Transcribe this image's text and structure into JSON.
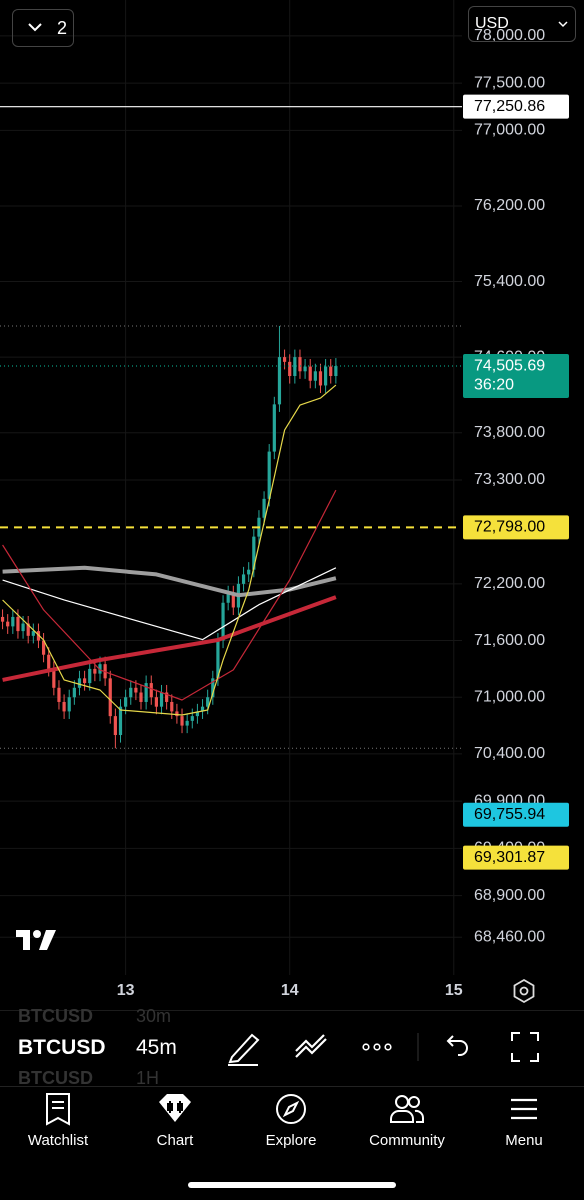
{
  "header": {
    "interval_button": "2",
    "currency": "USD"
  },
  "chart_data": {
    "type": "candlestick",
    "xlim": [
      -0.5,
      89.6
    ],
    "xticks": [
      {
        "value": 24,
        "label": "13"
      },
      {
        "value": 56,
        "label": "14"
      },
      {
        "value": 88,
        "label": "15"
      }
    ],
    "ylim": [
      68060,
      78380
    ],
    "yticks": [
      {
        "value": 78000,
        "label": "78,000.00"
      },
      {
        "value": 77500,
        "label": "77,500.00"
      },
      {
        "value": 77000,
        "label": "77,000.00"
      },
      {
        "value": 76200,
        "label": "76,200.00"
      },
      {
        "value": 75400,
        "label": "75,400.00"
      },
      {
        "value": 74600,
        "label": "74,600.00"
      },
      {
        "value": 73800,
        "label": "73,800.00"
      },
      {
        "value": 73300,
        "label": "73,300.00"
      },
      {
        "value": 72200,
        "label": "72,200.00"
      },
      {
        "value": 71600,
        "label": "71,600.00"
      },
      {
        "value": 71000,
        "label": "71,000.00"
      },
      {
        "value": 70400,
        "label": "70,400.00"
      },
      {
        "value": 69900,
        "label": "69,900.00"
      },
      {
        "value": 69400,
        "label": "69,400.00"
      },
      {
        "value": 68900,
        "label": "68,900.00"
      },
      {
        "value": 68460,
        "label": "68,460.00"
      }
    ],
    "grid": true,
    "up_color": "#26a69a",
    "down_color": "#ef5350",
    "high": 74930,
    "low": 70460,
    "candles": [
      [
        71850,
        71930,
        71720,
        71800
      ],
      [
        71800,
        71880,
        71670,
        71750
      ],
      [
        71750,
        71930,
        71670,
        71850
      ],
      [
        71850,
        71930,
        71620,
        71700
      ],
      [
        71700,
        71860,
        71620,
        71780
      ],
      [
        71780,
        71860,
        71570,
        71650
      ],
      [
        71650,
        71780,
        71570,
        71700
      ],
      [
        71700,
        71780,
        71520,
        71600
      ],
      [
        71600,
        71680,
        71370,
        71450
      ],
      [
        71450,
        71530,
        71220,
        71300
      ],
      [
        71300,
        71380,
        71020,
        71100
      ],
      [
        71100,
        71180,
        70870,
        70950
      ],
      [
        70950,
        71030,
        70770,
        70850
      ],
      [
        70850,
        71080,
        70770,
        71000
      ],
      [
        71000,
        71180,
        70920,
        71100
      ],
      [
        71100,
        71280,
        71020,
        71200
      ],
      [
        71200,
        71280,
        71070,
        71150
      ],
      [
        71150,
        71380,
        71070,
        71300
      ],
      [
        71300,
        71380,
        71170,
        71250
      ],
      [
        71250,
        71430,
        71170,
        71350
      ],
      [
        71350,
        71430,
        71120,
        71200
      ],
      [
        71200,
        71280,
        70720,
        70800
      ],
      [
        70800,
        70880,
        70460,
        70600
      ],
      [
        70600,
        70980,
        70520,
        70900
      ],
      [
        70900,
        71080,
        70820,
        71000
      ],
      [
        71000,
        71180,
        70920,
        71100
      ],
      [
        71100,
        71180,
        70970,
        71050
      ],
      [
        71050,
        71130,
        70870,
        70950
      ],
      [
        70950,
        71230,
        70870,
        71150
      ],
      [
        71150,
        71230,
        70920,
        71000
      ],
      [
        71000,
        71080,
        70820,
        70900
      ],
      [
        70900,
        71130,
        70820,
        71050
      ],
      [
        71050,
        71130,
        70870,
        70950
      ],
      [
        70950,
        71030,
        70770,
        70850
      ],
      [
        70850,
        70930,
        70720,
        70800
      ],
      [
        70800,
        70880,
        70620,
        70700
      ],
      [
        70700,
        70830,
        70620,
        70750
      ],
      [
        70750,
        70880,
        70670,
        70800
      ],
      [
        70800,
        70930,
        70720,
        70850
      ],
      [
        70850,
        70980,
        70770,
        70900
      ],
      [
        70900,
        71080,
        70820,
        71000
      ],
      [
        71000,
        71280,
        70920,
        71200
      ],
      [
        71200,
        71680,
        71120,
        71600
      ],
      [
        71600,
        72080,
        71520,
        72000
      ],
      [
        72000,
        72180,
        71920,
        72100
      ],
      [
        72100,
        72180,
        71870,
        71950
      ],
      [
        71950,
        72280,
        71870,
        72200
      ],
      [
        72200,
        72380,
        72120,
        72300
      ],
      [
        72300,
        72430,
        72220,
        72350
      ],
      [
        72350,
        72780,
        72270,
        72700
      ],
      [
        72700,
        72980,
        72620,
        72900
      ],
      [
        72900,
        73180,
        72820,
        73100
      ],
      [
        73100,
        73680,
        73020,
        73600
      ],
      [
        73600,
        74180,
        73520,
        74100
      ],
      [
        74100,
        74930,
        74020,
        74600
      ],
      [
        74600,
        74680,
        74470,
        74550
      ],
      [
        74550,
        74630,
        74320,
        74400
      ],
      [
        74400,
        74680,
        74320,
        74600
      ],
      [
        74600,
        74680,
        74370,
        74450
      ],
      [
        74450,
        74580,
        74370,
        74500
      ],
      [
        74500,
        74580,
        74270,
        74350
      ],
      [
        74350,
        74530,
        74270,
        74450
      ],
      [
        74450,
        74530,
        74220,
        74300
      ],
      [
        74300,
        74580,
        74220,
        74500
      ],
      [
        74500,
        74580,
        74320,
        74400
      ],
      [
        74400,
        74590,
        74320,
        74505.69
      ]
    ],
    "lines": [
      {
        "color": "#9e9e9e",
        "width": 4,
        "x": [
          0,
          16,
          30,
          46,
          56,
          65
        ],
        "values": [
          72330,
          72370,
          72300,
          72080,
          72140,
          72260
        ]
      },
      {
        "color": "#ffffff",
        "width": 1.2,
        "x": [
          0,
          12,
          39,
          50,
          65
        ],
        "values": [
          72240,
          72030,
          71610,
          71980,
          72370
        ]
      },
      {
        "color": "#c62838",
        "width": 4,
        "x": [
          0,
          19,
          42,
          50,
          65
        ],
        "values": [
          71183,
          71394,
          71606,
          71765,
          72060
        ]
      },
      {
        "color": "#c62838",
        "width": 1.2,
        "x": [
          0,
          8,
          19,
          35,
          45,
          56,
          65
        ],
        "values": [
          72611,
          71924,
          71289,
          70971,
          71289,
          72241,
          73193
        ]
      },
      {
        "color": "#e6d84a",
        "width": 1.2,
        "x": [
          0,
          8,
          12,
          19,
          23,
          35,
          40,
          43,
          48,
          52,
          55,
          58,
          62,
          65
        ],
        "values": [
          72029,
          71606,
          71183,
          71077,
          70865,
          70812,
          70865,
          71395,
          72135,
          73087,
          73828,
          74092,
          74166,
          74304
        ]
      }
    ],
    "price_lines": [
      {
        "value": 77250.86,
        "label": "77,250.86",
        "color": "#ffffff",
        "line": "solid"
      },
      {
        "value": 74505.69,
        "label": "74,505.69",
        "color": "#089981",
        "line": "dotted",
        "countdown": "36:20"
      },
      {
        "value": 72798.0,
        "label": "72,798.00",
        "color": "#f5e13b",
        "line": "dashed"
      },
      {
        "value": 69755.94,
        "label": "69,755.94",
        "color": "#1ec6e0",
        "line": "none"
      },
      {
        "value": 69301.87,
        "label": "69,301.87",
        "color": "#f5e13b",
        "line": "none"
      }
    ]
  },
  "toolbar": {
    "symbol": "BTCUSD",
    "interval": "45m",
    "prev_symbol": "BTCUSD",
    "prev_interval": "30m",
    "next_symbol": "BTCUSD",
    "next_interval": "1H"
  },
  "nav": [
    "Watchlist",
    "Chart",
    "Explore",
    "Community",
    "Menu"
  ]
}
